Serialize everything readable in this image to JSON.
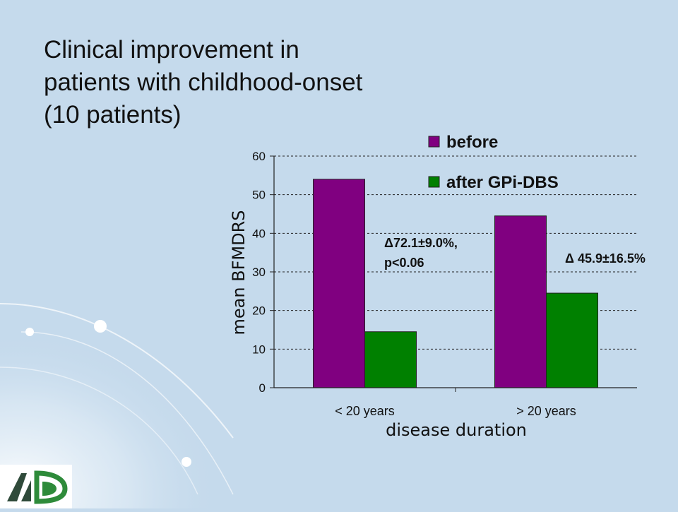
{
  "slide": {
    "title_lines": [
      "Clinical improvement in",
      "patients with childhood-onset",
      "(10 patients)"
    ]
  },
  "colors": {
    "background": "#c5daec",
    "before": "#800080",
    "after": "#008000",
    "logo_green": "#2e8b3a",
    "logo_dark": "#2f4a3a"
  },
  "chart_data": {
    "type": "bar",
    "categories": [
      "< 20 years",
      "> 20 years"
    ],
    "series": [
      {
        "name": "before",
        "values": [
          54,
          44.5
        ],
        "color": "#800080"
      },
      {
        "name": "after GPi-DBS",
        "values": [
          14.5,
          24.5
        ],
        "color": "#008000"
      }
    ],
    "xlabel": "disease duration",
    "ylabel": "mean BFMDRS",
    "ylim": [
      0,
      60
    ],
    "yticks": [
      0,
      10,
      20,
      30,
      40,
      50,
      60
    ],
    "grid": true,
    "legend_position": "top-right",
    "annotations": [
      {
        "category": "< 20 years",
        "lines": [
          "Δ72.1±9.0%,",
          "p<0.06"
        ]
      },
      {
        "category": "> 20 years",
        "lines": [
          "Δ 45.9±16.5%"
        ]
      }
    ]
  }
}
